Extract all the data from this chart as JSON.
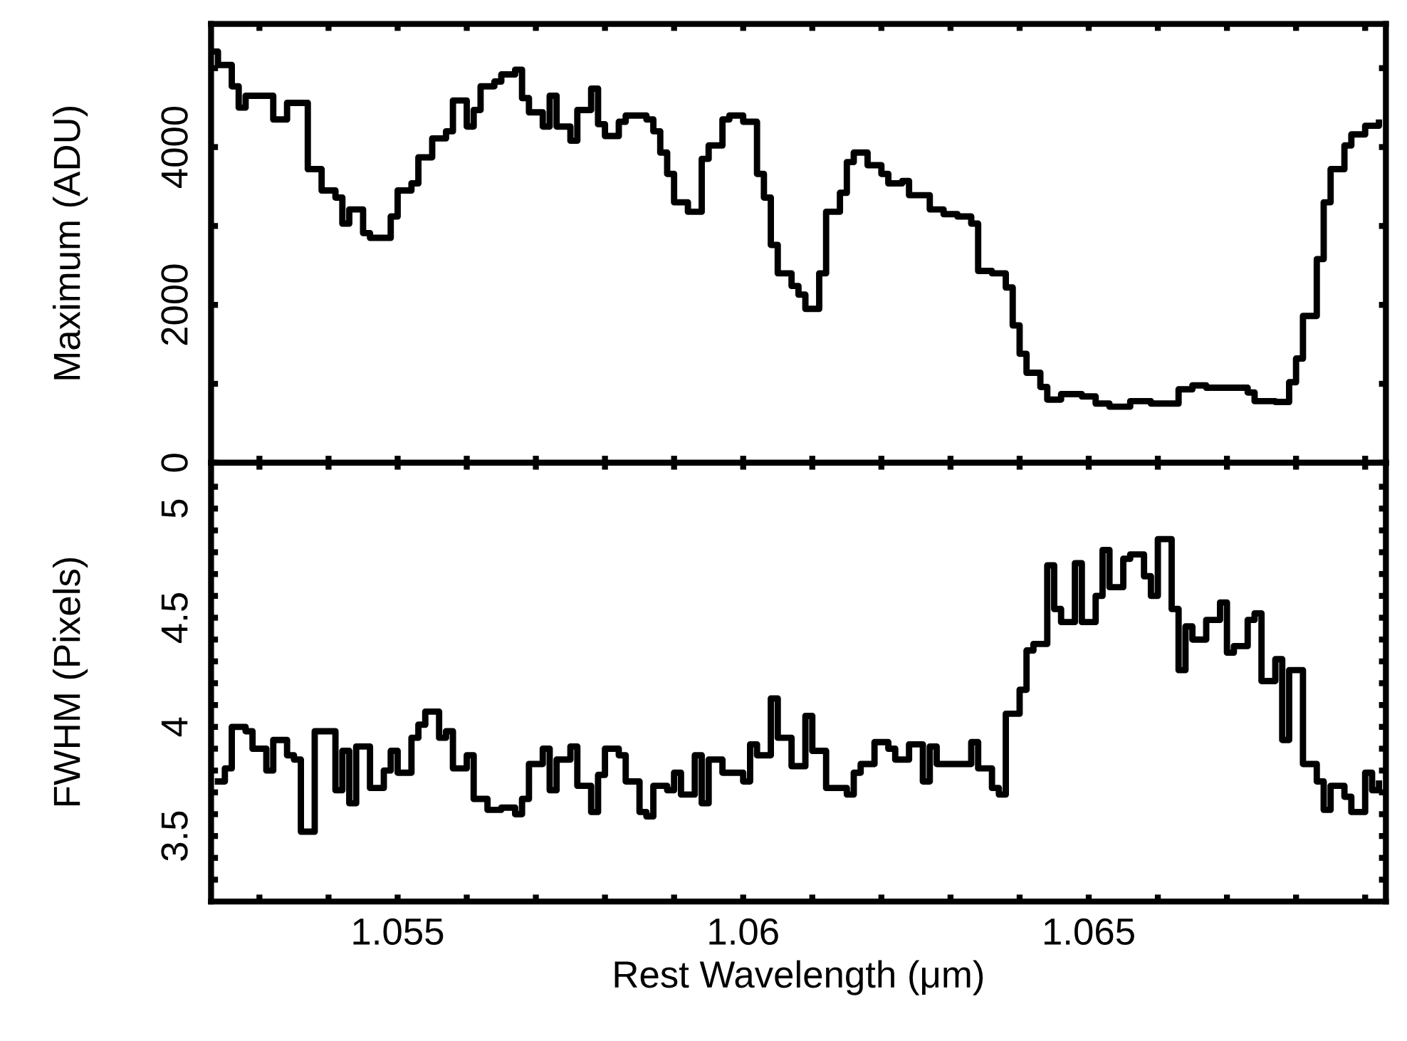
{
  "chart_data": [
    {
      "type": "step",
      "ylabel": "Maximum (ADU)",
      "xlim": [
        1.0523,
        1.0693
      ],
      "ylim": [
        0,
        5560
      ],
      "xticks": [
        {
          "value": 1.053,
          "label": null
        },
        {
          "value": 1.054,
          "label": null
        },
        {
          "value": 1.055,
          "label": null
        },
        {
          "value": 1.056,
          "label": null
        },
        {
          "value": 1.057,
          "label": null
        },
        {
          "value": 1.058,
          "label": null
        },
        {
          "value": 1.059,
          "label": null
        },
        {
          "value": 1.06,
          "label": null
        },
        {
          "value": 1.061,
          "label": null
        },
        {
          "value": 1.062,
          "label": null
        },
        {
          "value": 1.063,
          "label": null
        },
        {
          "value": 1.064,
          "label": null
        },
        {
          "value": 1.065,
          "label": null
        },
        {
          "value": 1.066,
          "label": null
        },
        {
          "value": 1.067,
          "label": null
        },
        {
          "value": 1.068,
          "label": null
        },
        {
          "value": 1.069,
          "label": null
        }
      ],
      "yticks": [
        0,
        {
          "value": 1000,
          "label": null
        },
        2000,
        {
          "value": 3000,
          "label": null
        },
        4000,
        {
          "value": 5000,
          "label": null
        }
      ],
      "tick_labels": "y",
      "grid": false,
      "legend": false,
      "series": [
        {
          "color": "#000000",
          "x": [
            1.0523,
            1.0524,
            1.0526,
            1.0527,
            1.0528,
            1.0532,
            1.0534,
            1.0537,
            1.0539,
            1.0541,
            1.0542,
            1.0543,
            1.0545,
            1.0546,
            1.0549,
            1.055,
            1.0552,
            1.0553,
            1.0555,
            1.0557,
            1.0558,
            1.056,
            1.0561,
            1.0562,
            1.0564,
            1.0565,
            1.0567,
            1.0568,
            1.0569,
            1.0571,
            1.0572,
            1.0573,
            1.0575,
            1.0576,
            1.0578,
            1.0579,
            1.058,
            1.0582,
            1.0583,
            1.0586,
            1.0587,
            1.0588,
            1.0589,
            1.059,
            1.0592,
            1.0594,
            1.0595,
            1.0597,
            1.0598,
            1.06,
            1.0602,
            1.0603,
            1.0604,
            1.0605,
            1.0607,
            1.0608,
            1.0609,
            1.0611,
            1.0612,
            1.0614,
            1.0615,
            1.0616,
            1.0618,
            1.062,
            1.0621,
            1.0623,
            1.0624,
            1.0627,
            1.0629,
            1.0631,
            1.0633,
            1.0634,
            1.0636,
            1.0638,
            1.0639,
            1.064,
            1.0641,
            1.0643,
            1.0644,
            1.0646,
            1.0649,
            1.0651,
            1.0653,
            1.0656,
            1.0659,
            1.0661,
            1.0663,
            1.0665,
            1.0667,
            1.0671,
            1.0673,
            1.0674,
            1.0677,
            1.0679,
            1.068,
            1.0681,
            1.0683,
            1.0684,
            1.0685,
            1.0687,
            1.0688,
            1.069,
            1.0692
          ],
          "values": [
            5210,
            5040,
            4770,
            4500,
            4650,
            4350,
            4560,
            3720,
            3450,
            3360,
            3030,
            3210,
            2910,
            2850,
            3120,
            3450,
            3540,
            3870,
            4110,
            4200,
            4590,
            4260,
            4470,
            4770,
            4830,
            4920,
            4980,
            4620,
            4440,
            4260,
            4650,
            4260,
            4080,
            4470,
            4740,
            4290,
            4140,
            4320,
            4400,
            4350,
            4200,
            3930,
            3660,
            3300,
            3180,
            3850,
            4020,
            4350,
            4400,
            4320,
            3660,
            3360,
            2760,
            2400,
            2240,
            2130,
            1950,
            2400,
            3180,
            3420,
            3810,
            3930,
            3770,
            3660,
            3540,
            3570,
            3390,
            3210,
            3150,
            3120,
            3030,
            2430,
            2400,
            2220,
            1740,
            1380,
            1140,
            960,
            800,
            870,
            840,
            750,
            710,
            780,
            750,
            750,
            930,
            980,
            950,
            950,
            890,
            780,
            770,
            1020,
            1320,
            1860,
            2580,
            3300,
            3720,
            4020,
            4160,
            4270,
            4310
          ]
        }
      ]
    },
    {
      "type": "step",
      "xlabel": "Rest Wavelength (μm)",
      "ylabel": "FWHM (Pixels)",
      "xlim": [
        1.0523,
        1.0693
      ],
      "ylim": [
        3.2,
        5.21
      ],
      "xticks": [
        {
          "value": 1.053,
          "label": null
        },
        {
          "value": 1.054,
          "label": null
        },
        1.055,
        {
          "value": 1.056,
          "label": null
        },
        {
          "value": 1.057,
          "label": null
        },
        {
          "value": 1.058,
          "label": null
        },
        {
          "value": 1.059,
          "label": null
        },
        1.06,
        {
          "value": 1.061,
          "label": null
        },
        {
          "value": 1.062,
          "label": null
        },
        {
          "value": 1.063,
          "label": null
        },
        {
          "value": 1.064,
          "label": null
        },
        1.065,
        {
          "value": 1.066,
          "label": null
        },
        {
          "value": 1.067,
          "label": null
        },
        {
          "value": 1.068,
          "label": null
        },
        {
          "value": 1.069,
          "label": null
        }
      ],
      "yticks": [
        {
          "value": 3.3,
          "label": null
        },
        {
          "value": 3.4,
          "label": null
        },
        3.5,
        {
          "value": 3.6,
          "label": null
        },
        {
          "value": 3.7,
          "label": null
        },
        {
          "value": 3.8,
          "label": null
        },
        {
          "value": 3.9,
          "label": null
        },
        4,
        {
          "value": 4.1,
          "label": null
        },
        {
          "value": 4.2,
          "label": null
        },
        {
          "value": 4.3,
          "label": null
        },
        {
          "value": 4.4,
          "label": null
        },
        4.5,
        {
          "value": 4.6,
          "label": null
        },
        {
          "value": 4.7,
          "label": null
        },
        {
          "value": 4.8,
          "label": null
        },
        {
          "value": 4.9,
          "label": null
        },
        5,
        {
          "value": 5.1,
          "label": null
        }
      ],
      "grid": false,
      "legend": false,
      "series": [
        {
          "color": "#000000",
          "x": [
            1.0524,
            1.0525,
            1.0526,
            1.0528,
            1.0529,
            1.0531,
            1.0532,
            1.0534,
            1.0535,
            1.0536,
            1.0538,
            1.0541,
            1.0542,
            1.0543,
            1.0544,
            1.0546,
            1.0548,
            1.0549,
            1.055,
            1.0552,
            1.0553,
            1.0554,
            1.0556,
            1.0557,
            1.0558,
            1.056,
            1.0561,
            1.0563,
            1.0565,
            1.0567,
            1.0568,
            1.0569,
            1.0571,
            1.0572,
            1.0573,
            1.0575,
            1.0576,
            1.0578,
            1.0579,
            1.058,
            1.0582,
            1.0583,
            1.0585,
            1.0586,
            1.0587,
            1.0589,
            1.059,
            1.0591,
            1.0593,
            1.0594,
            1.0595,
            1.0597,
            1.06,
            1.0601,
            1.0602,
            1.0604,
            1.0605,
            1.0607,
            1.0609,
            1.061,
            1.0612,
            1.0615,
            1.0616,
            1.0617,
            1.0619,
            1.0621,
            1.0622,
            1.0624,
            1.0626,
            1.0627,
            1.0628,
            1.0633,
            1.0634,
            1.0636,
            1.0637,
            1.0638,
            1.064,
            1.0641,
            1.0642,
            1.0644,
            1.0645,
            1.0646,
            1.0648,
            1.0649,
            1.0651,
            1.0652,
            1.0653,
            1.0655,
            1.0656,
            1.0658,
            1.0659,
            1.066,
            1.0662,
            1.0663,
            1.0664,
            1.0665,
            1.0667,
            1.0669,
            1.067,
            1.0671,
            1.0673,
            1.0674,
            1.0675,
            1.0677,
            1.0678,
            1.0679,
            1.0681,
            1.0683,
            1.0684,
            1.0685,
            1.0687,
            1.0688,
            1.069,
            1.0691,
            1.0692
          ],
          "values": [
            3.75,
            3.81,
            4.0,
            3.98,
            3.9,
            3.8,
            3.94,
            3.87,
            3.85,
            3.52,
            3.98,
            3.71,
            3.89,
            3.65,
            3.91,
            3.72,
            3.8,
            3.89,
            3.79,
            3.95,
            4.01,
            4.07,
            3.95,
            3.98,
            3.81,
            3.87,
            3.67,
            3.62,
            3.63,
            3.6,
            3.67,
            3.83,
            3.9,
            3.71,
            3.85,
            3.91,
            3.73,
            3.61,
            3.78,
            3.9,
            3.87,
            3.75,
            3.61,
            3.59,
            3.73,
            3.71,
            3.79,
            3.69,
            3.87,
            3.65,
            3.85,
            3.79,
            3.75,
            3.92,
            3.87,
            4.13,
            3.95,
            3.82,
            4.05,
            3.89,
            3.72,
            3.69,
            3.79,
            3.83,
            3.93,
            3.9,
            3.85,
            3.92,
            3.75,
            3.91,
            3.83,
            3.93,
            3.81,
            3.72,
            3.69,
            4.06,
            4.17,
            4.35,
            4.38,
            4.74,
            4.54,
            4.48,
            4.75,
            4.48,
            4.6,
            4.81,
            4.64,
            4.77,
            4.79,
            4.69,
            4.6,
            4.86,
            4.54,
            4.26,
            4.46,
            4.4,
            4.49,
            4.57,
            4.34,
            4.37,
            4.49,
            4.52,
            4.21,
            4.31,
            3.94,
            4.26,
            3.83,
            3.75,
            3.62,
            3.73,
            3.68,
            3.61,
            3.79,
            3.71,
            3.74
          ]
        }
      ]
    }
  ]
}
